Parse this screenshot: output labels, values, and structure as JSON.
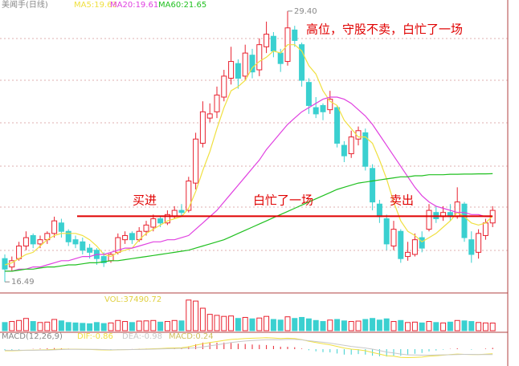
{
  "chart_data": {
    "type": "candlestick",
    "title": "美闻手(日线)",
    "up_color": "#e8212f",
    "down_color": "#3ad0d0",
    "ylim": [
      16,
      29.93
    ],
    "open": [
      17.6,
      17.2,
      17.6,
      18.2,
      18.7,
      18.3,
      18.5,
      18.8,
      19.3,
      18.9,
      18.5,
      18.4,
      18.1,
      18.0,
      17.7,
      17.5,
      17.9,
      18.5,
      18.8,
      18.5,
      18.9,
      19.1,
      19.5,
      19.3,
      19.6,
      19.9,
      19.9,
      21.2,
      23.1,
      24.3,
      24.6,
      25.3,
      26.2,
      26.9,
      26.3,
      27.3,
      26.6,
      27.7,
      28.2,
      27.4,
      27.0,
      28.5,
      27.8,
      26.0,
      24.8,
      24.9,
      24.7,
      24.8,
      23.0,
      22.6,
      23.3,
      23.6,
      21.9,
      20.2,
      19.5,
      18.2,
      18.9,
      17.7,
      17.8,
      18.6,
      19.0,
      19.8,
      19.6,
      19.8,
      19.6,
      20.2,
      18.5,
      17.9,
      18.7,
      19.3
    ],
    "high": [
      17.8,
      17.7,
      18.4,
      18.9,
      18.8,
      18.7,
      18.9,
      19.6,
      19.5,
      19.0,
      18.7,
      18.6,
      18.3,
      18.1,
      17.9,
      17.9,
      18.8,
      18.9,
      18.9,
      19.1,
      19.4,
      19.7,
      19.6,
      19.9,
      20.1,
      20.2,
      21.5,
      23.6,
      25.1,
      25.0,
      25.8,
      26.6,
      27.7,
      27.1,
      27.8,
      27.6,
      28.1,
      28.9,
      28.4,
      27.6,
      29.4,
      28.7,
      27.9,
      26.2,
      25.3,
      25.0,
      25.6,
      24.9,
      23.2,
      23.7,
      23.9,
      23.8,
      22.1,
      20.4,
      19.7,
      19.4,
      19.0,
      18.4,
      18.8,
      18.9,
      20.2,
      20.1,
      20.1,
      20.2,
      21.0,
      20.3,
      18.9,
      19.0,
      19.5,
      20.1
    ],
    "low": [
      16.49,
      17.0,
      17.5,
      18.0,
      18.1,
      18.1,
      18.3,
      18.6,
      18.6,
      18.2,
      18.1,
      17.8,
      17.6,
      17.3,
      17.2,
      17.4,
      17.8,
      18.3,
      18.3,
      18.4,
      18.7,
      18.9,
      19.1,
      19.2,
      19.5,
      19.6,
      19.8,
      20.9,
      22.9,
      24.1,
      24.3,
      25.1,
      25.9,
      25.7,
      26.1,
      26.2,
      26.3,
      27.4,
      27.2,
      26.5,
      26.8,
      27.7,
      25.8,
      24.5,
      24.3,
      24.2,
      24.5,
      22.9,
      22.2,
      22.4,
      23.0,
      21.8,
      19.9,
      19.3,
      18.0,
      18.0,
      17.4,
      17.5,
      17.7,
      17.9,
      18.9,
      19.3,
      19.4,
      19.4,
      19.5,
      18.4,
      17.4,
      17.6,
      18.5,
      19.1
    ],
    "close": [
      17.1,
      17.5,
      18.2,
      18.6,
      18.3,
      18.5,
      18.8,
      19.4,
      18.9,
      18.4,
      18.3,
      18.0,
      17.9,
      17.6,
      17.4,
      17.8,
      18.6,
      18.7,
      18.5,
      18.9,
      19.2,
      19.5,
      19.3,
      19.7,
      19.9,
      19.8,
      21.3,
      23.3,
      24.6,
      24.5,
      25.4,
      26.3,
      27.0,
      26.2,
      27.4,
      26.5,
      27.8,
      28.3,
      27.5,
      26.9,
      28.6,
      28.0,
      26.1,
      24.9,
      24.5,
      24.6,
      25.2,
      23.1,
      22.5,
      23.4,
      23.7,
      22.0,
      20.3,
      19.6,
      18.3,
      19.0,
      17.6,
      17.9,
      18.5,
      18.1,
      19.9,
      19.5,
      19.8,
      19.6,
      20.3,
      18.6,
      17.8,
      18.8,
      19.3,
      19.9
    ],
    "series": [
      {
        "name": "MA5:19.63",
        "color": "#f0e040",
        "values": [
          17.3,
          17.4,
          17.6,
          17.8,
          17.9,
          18.2,
          18.5,
          18.7,
          18.8,
          18.8,
          18.8,
          18.7,
          18.5,
          18.2,
          17.8,
          17.7,
          17.9,
          18.0,
          18.1,
          18.5,
          18.8,
          19.0,
          19.2,
          19.4,
          19.5,
          19.6,
          20.0,
          20.8,
          21.8,
          22.7,
          23.8,
          24.8,
          25.6,
          25.8,
          26.1,
          26.7,
          27.0,
          27.2,
          27.5,
          27.4,
          27.8,
          27.8,
          27.5,
          26.8,
          26.4,
          25.6,
          25.1,
          24.9,
          24.2,
          23.8,
          23.4,
          23.4,
          23.1,
          22.3,
          21.4,
          20.3,
          19.4,
          18.9,
          18.7,
          18.4,
          18.6,
          18.8,
          19.1,
          19.4,
          19.8,
          19.6,
          19.3,
          19.2,
          19.3,
          19.63
        ]
      },
      {
        "name": "MA20:19.61",
        "color": "#e040e0",
        "values": [
          17.0,
          17.0,
          17.1,
          17.1,
          17.2,
          17.2,
          17.3,
          17.4,
          17.5,
          17.5,
          17.6,
          17.7,
          17.7,
          17.8,
          17.8,
          17.9,
          18.0,
          18.1,
          18.1,
          18.2,
          18.3,
          18.4,
          18.4,
          18.5,
          18.5,
          18.6,
          18.7,
          19.0,
          19.3,
          19.6,
          19.9,
          20.3,
          20.7,
          21.1,
          21.5,
          21.9,
          22.3,
          22.8,
          23.2,
          23.6,
          24.0,
          24.3,
          24.6,
          24.8,
          25.0,
          25.2,
          25.3,
          25.3,
          25.2,
          25.0,
          24.7,
          24.4,
          24.0,
          23.5,
          23.0,
          22.5,
          22.0,
          21.5,
          21.0,
          20.6,
          20.3,
          20.1,
          20.0,
          19.9,
          19.8,
          19.8,
          19.7,
          19.7,
          19.6,
          19.61
        ]
      },
      {
        "name": "MA60:21.65",
        "color": "#20c020",
        "values": [
          17.0,
          17.0,
          17.05,
          17.1,
          17.1,
          17.15,
          17.2,
          17.2,
          17.25,
          17.3,
          17.3,
          17.35,
          17.4,
          17.4,
          17.45,
          17.5,
          17.5,
          17.55,
          17.6,
          17.65,
          17.7,
          17.75,
          17.8,
          17.85,
          17.9,
          17.95,
          18.0,
          18.1,
          18.2,
          18.3,
          18.4,
          18.5,
          18.65,
          18.8,
          18.95,
          19.1,
          19.25,
          19.4,
          19.55,
          19.7,
          19.85,
          20.0,
          20.15,
          20.3,
          20.45,
          20.6,
          20.75,
          20.9,
          21.0,
          21.1,
          21.2,
          21.25,
          21.3,
          21.35,
          21.4,
          21.45,
          21.5,
          21.5,
          21.55,
          21.55,
          21.6,
          21.6,
          21.6,
          21.62,
          21.62,
          21.63,
          21.63,
          21.64,
          21.64,
          21.65
        ]
      }
    ],
    "high_label": {
      "value": 29.4,
      "label": "29.40"
    },
    "low_label": {
      "value": 16.49,
      "label": "16.49"
    },
    "price_line": {
      "value": 19.62,
      "color": "#e00000"
    },
    "annotations": [
      "高位，守股不卖，白忙了一场",
      "买进",
      "白忙了一场",
      "卖出"
    ],
    "volume": {
      "label": "VOL:37490.72",
      "ylim": [
        0,
        165000
      ],
      "values": [
        40000,
        45000,
        50000,
        60000,
        45000,
        40000,
        42000,
        55000,
        48000,
        40000,
        38000,
        36000,
        34000,
        40000,
        35000,
        38000,
        50000,
        45000,
        40000,
        47000,
        48000,
        50000,
        42000,
        45000,
        50000,
        48000,
        150000,
        145000,
        110000,
        80000,
        75000,
        70000,
        72000,
        60000,
        65000,
        58000,
        62000,
        70000,
        55000,
        52000,
        68000,
        60000,
        65000,
        58000,
        50000,
        45000,
        52000,
        55000,
        48000,
        45000,
        47000,
        55000,
        60000,
        52000,
        58000,
        45000,
        50000,
        40000,
        42000,
        38000,
        45000,
        40000,
        38000,
        42000,
        50000,
        48000,
        45000,
        40000,
        38000,
        37490.72
      ]
    },
    "macd": {
      "title": "MACD(12,26,9)",
      "ylim": [
        -2.5,
        2.5
      ],
      "dif": {
        "name": "DIF:-0.86",
        "color": "#f0e040",
        "values": [
          -0.3,
          -0.3,
          -0.25,
          -0.2,
          -0.18,
          -0.14,
          -0.1,
          -0.03,
          0.0,
          0.0,
          0.0,
          -0.03,
          -0.06,
          -0.1,
          -0.15,
          -0.16,
          -0.12,
          -0.09,
          -0.07,
          -0.03,
          0.02,
          0.08,
          0.12,
          0.18,
          0.22,
          0.25,
          0.42,
          0.72,
          1.0,
          1.2,
          1.4,
          1.6,
          1.78,
          1.85,
          1.95,
          2.0,
          2.05,
          2.1,
          2.05,
          1.95,
          2.0,
          1.95,
          1.75,
          1.45,
          1.2,
          0.98,
          0.8,
          0.5,
          0.2,
          0.0,
          -0.1,
          -0.3,
          -0.6,
          -0.9,
          -1.2,
          -1.3,
          -1.5,
          -1.55,
          -1.5,
          -1.45,
          -1.3,
          -1.2,
          -1.1,
          -1.0,
          -0.9,
          -0.95,
          -1.0,
          -0.98,
          -0.92,
          -0.86
        ]
      },
      "dea": {
        "name": "DEA:-0.98",
        "color": "#c8c8c8",
        "values": [
          -0.2,
          -0.22,
          -0.2,
          -0.2,
          -0.2,
          -0.19,
          -0.17,
          -0.13,
          -0.08,
          -0.05,
          -0.03,
          -0.03,
          -0.03,
          -0.05,
          -0.08,
          -0.1,
          -0.1,
          -0.09,
          -0.08,
          -0.06,
          -0.03,
          0.0,
          0.05,
          0.08,
          0.12,
          0.15,
          0.17,
          0.27,
          0.4,
          0.6,
          0.8,
          1.0,
          1.2,
          1.35,
          1.48,
          1.58,
          1.65,
          1.73,
          1.75,
          1.73,
          1.78,
          1.78,
          1.7,
          1.55,
          1.4,
          1.26,
          1.1,
          0.9,
          0.7,
          0.5,
          0.35,
          0.2,
          0.0,
          -0.25,
          -0.53,
          -0.7,
          -0.9,
          -1.05,
          -1.08,
          -1.1,
          -1.1,
          -1.08,
          -1.05,
          -1.03,
          -0.98,
          -0.95,
          -0.95,
          -0.98,
          -0.97,
          -0.98
        ]
      },
      "hist": {
        "name": "MACD:0.24",
        "color": "#d0c060",
        "values": [
          -0.2,
          -0.15,
          -0.1,
          0.0,
          0.05,
          0.1,
          0.15,
          0.2,
          0.15,
          0.1,
          0.05,
          0.0,
          -0.05,
          -0.1,
          -0.15,
          -0.12,
          -0.05,
          0.0,
          0.02,
          0.05,
          0.1,
          0.15,
          0.15,
          0.2,
          0.2,
          0.2,
          0.5,
          0.9,
          1.2,
          1.2,
          1.2,
          1.2,
          1.15,
          1.0,
          0.95,
          0.85,
          0.8,
          0.75,
          0.6,
          0.45,
          0.45,
          0.35,
          0.1,
          -0.2,
          -0.4,
          -0.55,
          -0.6,
          -0.8,
          -1.0,
          -1.0,
          -0.9,
          -1.0,
          -1.2,
          -1.3,
          -1.35,
          -1.2,
          -1.2,
          -1.0,
          -0.85,
          -0.7,
          -0.4,
          -0.25,
          -0.1,
          0.05,
          0.15,
          0.0,
          -0.1,
          0.0,
          0.1,
          0.24
        ]
      }
    }
  }
}
